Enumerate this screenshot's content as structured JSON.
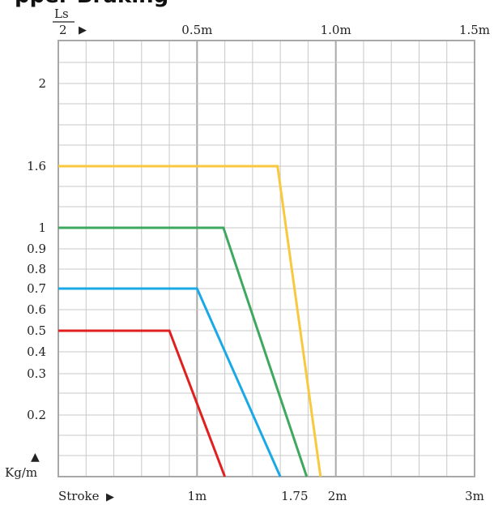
{
  "chart_data": {
    "type": "line",
    "title": "pper Braking",
    "top_axis": {
      "label_numerator": "Ls",
      "label_denominator": "2",
      "arrow": "▶",
      "ticks": [
        {
          "value": 0.5,
          "label": "0.5m"
        },
        {
          "value": 1.0,
          "label": "1.0m"
        },
        {
          "value": 1.5,
          "label": "1.5m"
        }
      ],
      "range": [
        0,
        1.5
      ]
    },
    "x_axis": {
      "label": "Stroke",
      "arrow": "▶",
      "ticks": [
        {
          "value": 1,
          "label": "1m"
        },
        {
          "value": 1.75,
          "label": "1.75"
        },
        {
          "value": 2,
          "label": "2m"
        },
        {
          "value": 3,
          "label": "3m"
        }
      ],
      "range": [
        0,
        3
      ]
    },
    "y_axis": {
      "label": "Kg/m",
      "arrow": "▲",
      "ticks": [
        "2",
        "1.6",
        "1",
        "0.9",
        "0.8",
        "0.7",
        "0.6",
        "0.5",
        "0.4",
        "0.3",
        "0.2"
      ]
    },
    "grid": true,
    "series": [
      {
        "color": "#f8c93e",
        "points": [
          [
            0,
            "1.6"
          ],
          [
            1.58,
            "1.6"
          ],
          [
            1.89,
            "bottom"
          ]
        ]
      },
      {
        "color": "#3fa860",
        "points": [
          [
            0,
            "1"
          ],
          [
            1.19,
            "1"
          ],
          [
            1.79,
            "bottom"
          ]
        ]
      },
      {
        "color": "#1aa9e6",
        "points": [
          [
            0,
            "0.7"
          ],
          [
            1.0,
            "0.7"
          ],
          [
            1.6,
            "bottom"
          ]
        ]
      },
      {
        "color": "#e02020",
        "points": [
          [
            0,
            "0.5"
          ],
          [
            0.8,
            "0.5"
          ],
          [
            1.2,
            "bottom"
          ]
        ]
      }
    ]
  }
}
